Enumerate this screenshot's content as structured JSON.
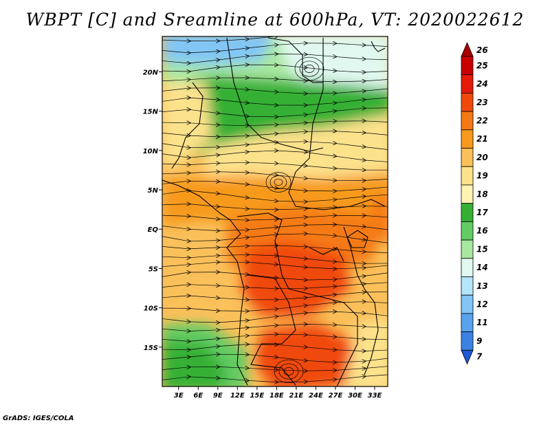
{
  "title": "WBPT [C] and Sreamline at 600hPa, VT: 2020022612",
  "footer": "GrADS: IGES/COLA",
  "map": {
    "lat_labels": [
      "20N",
      "15N",
      "10N",
      "5N",
      "EQ",
      "5S",
      "10S",
      "15S"
    ],
    "lat_values": [
      20,
      15,
      10,
      5,
      0,
      -5,
      -10,
      -15
    ],
    "lon_labels": [
      "3E",
      "6E",
      "9E",
      "12E",
      "15E",
      "18E",
      "21E",
      "24E",
      "27E",
      "30E",
      "33E"
    ],
    "lon_values": [
      3,
      6,
      9,
      12,
      15,
      18,
      21,
      24,
      27,
      30,
      33
    ],
    "lon_range": [
      0.5,
      35
    ],
    "lat_range": [
      -20,
      24.5
    ]
  },
  "colorbar": {
    "labels": [
      "26",
      "25",
      "24",
      "23",
      "22",
      "21",
      "20",
      "19",
      "18",
      "17",
      "16",
      "15",
      "14",
      "13",
      "12",
      "11",
      "9",
      "7"
    ],
    "colors": [
      "#a80000",
      "#c80000",
      "#e61a0a",
      "#f04a0a",
      "#f57a14",
      "#f79a1e",
      "#fac05a",
      "#fde28c",
      "#fff3b4",
      "#35b035",
      "#64cc64",
      "#a8e8a0",
      "#e0f8f0",
      "#b4e6fa",
      "#82c6f5",
      "#5aa2ee",
      "#3c82e4",
      "#1e5ad6"
    ]
  }
}
